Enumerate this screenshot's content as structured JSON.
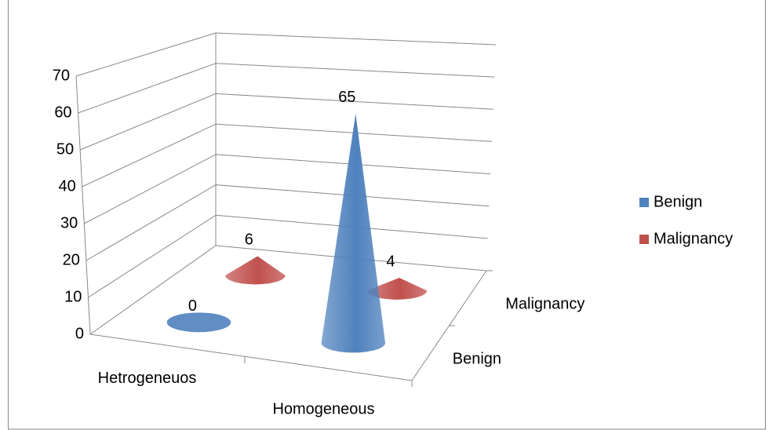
{
  "chart_data": {
    "type": "cone3d",
    "categories": [
      "Hetrogeneuos",
      "Homogeneous"
    ],
    "series": [
      {
        "name": "Benign",
        "color": "#4f81bd",
        "values": [
          0,
          65
        ]
      },
      {
        "name": "Malignancy",
        "color": "#c0504d",
        "values": [
          6,
          4
        ]
      }
    ],
    "ylim": [
      0,
      70
    ],
    "yticks": [
      0,
      10,
      20,
      30,
      40,
      50,
      60,
      70
    ],
    "grid": true,
    "legend": "right"
  }
}
